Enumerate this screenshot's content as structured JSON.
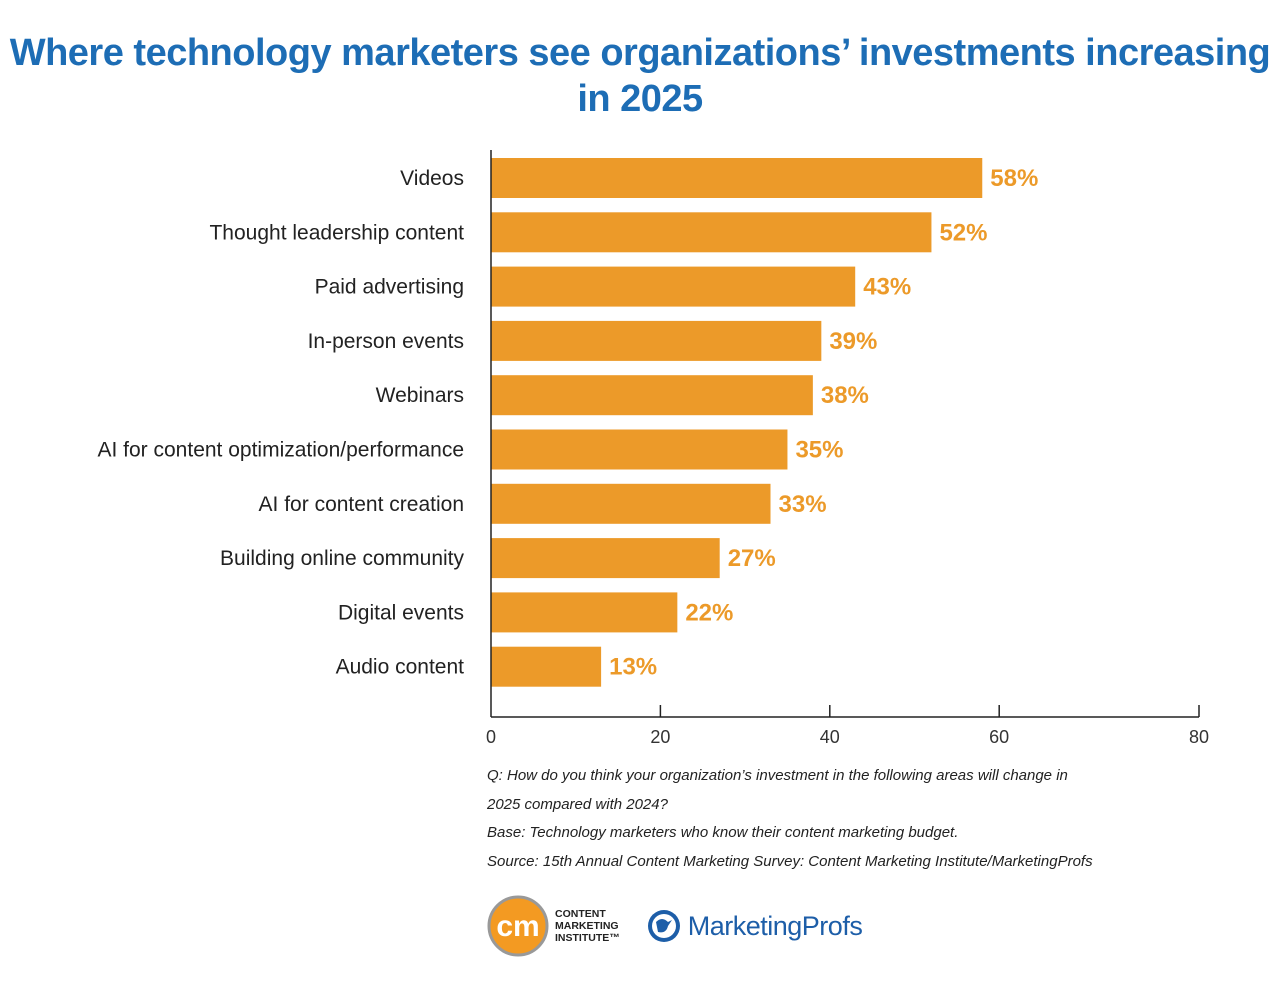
{
  "chart_data": {
    "type": "bar",
    "orientation": "horizontal",
    "title": "Where technology marketers see organizations’ investments increasing in 2025",
    "categories": [
      "Videos",
      "Thought leadership content",
      "Paid advertising",
      "In-person events",
      "Webinars",
      "AI for content optimization/performance",
      "AI for content creation",
      "Building online community",
      "Digital events",
      "Audio content"
    ],
    "values": [
      58,
      52,
      43,
      39,
      38,
      35,
      33,
      27,
      22,
      13
    ],
    "data_labels": [
      "58%",
      "52%",
      "43%",
      "39%",
      "38%",
      "35%",
      "33%",
      "27%",
      "22%",
      "13%"
    ],
    "xticks": [
      0,
      20,
      40,
      60,
      80
    ],
    "xlim": [
      0,
      80
    ],
    "xlabel": "",
    "ylabel": "",
    "grid": false,
    "bar_color": "#ec9a29",
    "label_color": "#ec9a29"
  },
  "notes": [
    "Q: How do you think your organization’s investment in the following areas will change in",
    "2025 compared with 2024?",
    "Base: Technology marketers who know their content marketing budget.",
    "Source: 15th Annual Content Marketing Survey: Content Marketing Institute/MarketingProfs"
  ],
  "logos": {
    "cmi_mark": "cm",
    "cmi": [
      "CONTENT",
      "MARKETING",
      "INSTITUTE™"
    ],
    "mp": "MarketingProfs"
  }
}
